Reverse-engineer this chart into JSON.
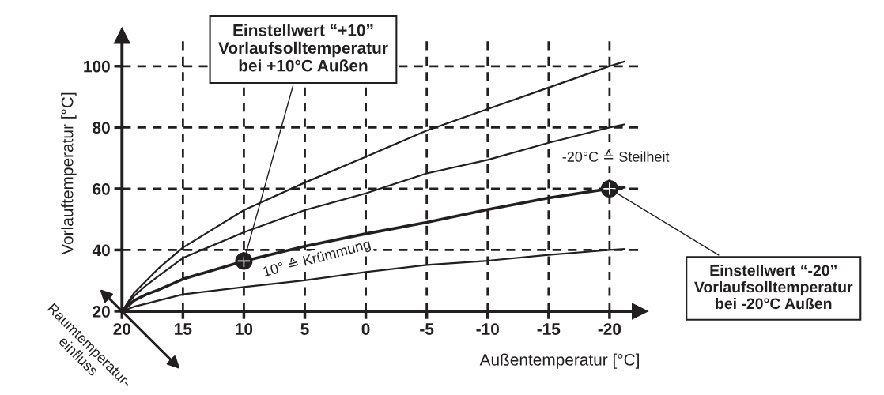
{
  "chart_data": {
    "type": "line",
    "xlabel": "Außentemperatur [°C]",
    "ylabel": "Vorlauftemperatur [°C]",
    "xlim": [
      20,
      -22.5
    ],
    "ylim": [
      20,
      110
    ],
    "xticks": [
      20,
      15,
      10,
      5,
      0,
      -5,
      -10,
      -15,
      -20
    ],
    "yticks": [
      20,
      40,
      60,
      80,
      100
    ],
    "grid": true,
    "line_style": "solid",
    "marker": "none",
    "series": [
      {
        "color": "#231f20",
        "x": [
          20,
          19,
          18,
          17,
          15,
          10,
          5,
          0,
          -5,
          -10,
          -15,
          -20,
          -21.2
        ],
        "values": [
          20,
          26,
          30,
          34,
          40.8,
          53,
          62,
          70.4,
          79,
          86,
          93,
          100,
          101.5
        ]
      },
      {
        "color": "#231f20",
        "x": [
          20,
          19,
          18,
          17,
          15,
          10,
          5,
          0,
          -5,
          -10,
          -15,
          -20,
          -21.2
        ],
        "values": [
          20,
          25,
          28.5,
          31.5,
          37.4,
          45.8,
          53,
          58.5,
          65,
          69.4,
          75,
          80,
          81
        ]
      },
      {
        "color": "#231f20",
        "x": [
          20,
          19,
          18,
          17,
          15,
          10,
          5,
          0,
          -5,
          -10,
          -15,
          -20,
          -21.2
        ],
        "values": [
          20,
          23.5,
          25.5,
          27,
          30.5,
          36.4,
          41.2,
          45.3,
          49,
          53.2,
          57,
          60,
          60.5
        ]
      },
      {
        "color": "#231f20",
        "x": [
          20,
          19,
          18,
          17,
          15,
          10,
          5,
          0,
          -5,
          -10,
          -15,
          -20,
          -21.2
        ],
        "values": [
          20,
          21.5,
          22.5,
          23.5,
          25.5,
          27.9,
          30.1,
          32.8,
          35.1,
          36.5,
          38.4,
          40,
          40.3
        ]
      },
      {
        "type": "scatter",
        "marker": "circle",
        "color": "#231f20",
        "x": [
          10,
          -20
        ],
        "values": [
          36.4,
          60
        ]
      }
    ],
    "annotations": [
      {
        "text": "Einstellwert “+10”\nVorlaufsolltemperatur\nbei +10°C Außen",
        "x": 10,
        "y": 36.4
      },
      {
        "text": "Einstellwert “-20”\nVorlaufsolltemperatur\nbei -20°C Außen",
        "x": -20,
        "y": 60
      },
      "10° ≙ Krümmung",
      "-20°C ≙ Steilheit",
      "Raumtemperatur-\neinfluss"
    ]
  }
}
